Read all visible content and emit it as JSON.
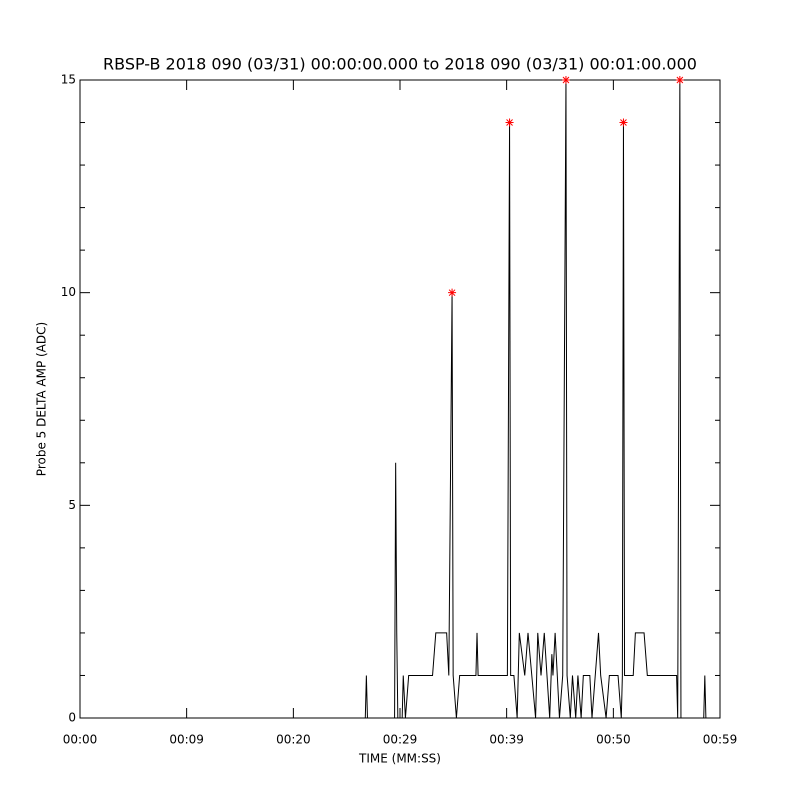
{
  "chart_data": {
    "type": "line",
    "title": "RBSP-B 2018 090 (03/31) 00:00:00.000 to 2018 090 (03/31) 00:01:00.000",
    "x_label": "TIME (MM:SS)",
    "y_label": "Probe 5 DELTA AMP (ADC)",
    "xlim": [
      0,
      59
    ],
    "ylim": [
      0,
      15
    ],
    "xticks": [
      {
        "value": 0,
        "label": "00:00"
      },
      {
        "value": 9.83,
        "label": "00:09"
      },
      {
        "value": 19.67,
        "label": "00:20"
      },
      {
        "value": 29.5,
        "label": "00:29"
      },
      {
        "value": 39.33,
        "label": "00:39"
      },
      {
        "value": 49.17,
        "label": "00:50"
      },
      {
        "value": 59,
        "label": "00:59"
      }
    ],
    "yticks": [
      0,
      5,
      10,
      15
    ],
    "yminor": [
      1,
      2,
      3,
      4,
      6,
      7,
      8,
      9,
      11,
      12,
      13,
      14
    ],
    "series": [
      {
        "color": "#000000",
        "x": [
          0,
          26.3,
          26.4,
          26.5,
          29.0,
          29.1,
          29.2,
          29.3,
          29.7,
          29.8,
          30.0,
          30.3,
          32.5,
          32.8,
          33.8,
          34.0,
          34.3,
          34.4,
          34.7,
          35.0,
          36.5,
          36.6,
          36.7,
          39.4,
          39.6,
          39.7,
          40.0,
          40.3,
          40.5,
          41.0,
          41.3,
          42.0,
          42.2,
          42.5,
          42.8,
          43.3,
          43.5,
          43.6,
          43.8,
          44.2,
          44.5,
          44.8,
          44.9,
          45.2,
          45.4,
          45.7,
          45.9,
          46.2,
          46.4,
          47.0,
          47.2,
          47.5,
          47.8,
          48.0,
          48.5,
          48.8,
          49.6,
          49.9,
          50.0,
          50.1,
          50.2,
          51.0,
          51.2,
          52.0,
          52.3,
          55.0,
          55.1,
          55.3,
          55.4,
          57.5,
          57.6,
          57.7,
          59
        ],
        "values": [
          0,
          0,
          1,
          0,
          0,
          6,
          2,
          0,
          0,
          1,
          0,
          1,
          1,
          2,
          2,
          1,
          10,
          1,
          0,
          1,
          1,
          2,
          1,
          1,
          14,
          1,
          1,
          0,
          2,
          1,
          2,
          0,
          2,
          1,
          2,
          0,
          1.5,
          1,
          2,
          0,
          1,
          15,
          1,
          0,
          1,
          0,
          1,
          0,
          1,
          1,
          0,
          1,
          2,
          1,
          0,
          1,
          1,
          0,
          1,
          14,
          1,
          1,
          2,
          2,
          1,
          1,
          0,
          15,
          0,
          0,
          1,
          0,
          0
        ]
      }
    ],
    "markers": {
      "color": "#ff0000",
      "x": [
        34.3,
        39.6,
        44.8,
        50.1,
        55.3
      ],
      "values": [
        10,
        14,
        15,
        14,
        15
      ]
    }
  }
}
